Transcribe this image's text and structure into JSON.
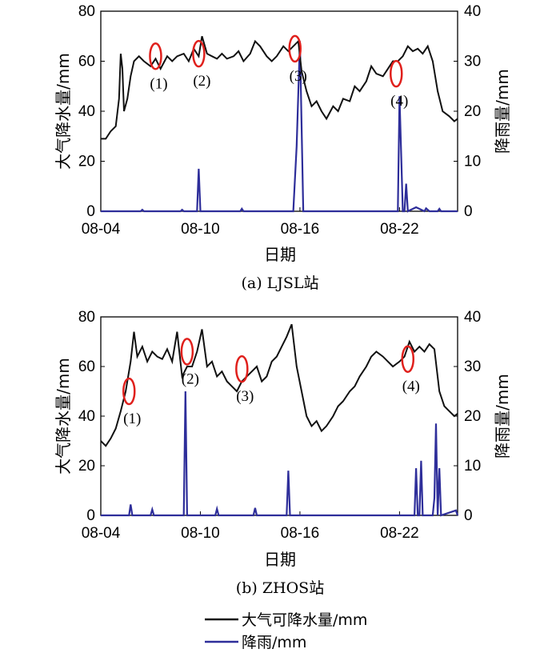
{
  "colors": {
    "pwv": "#111111",
    "rain": "#2e2e9a",
    "marker": "#e0201c"
  },
  "legend": {
    "pwv_label": "大气可降水量/mm",
    "rain_label": "降雨/mm"
  },
  "chart_data": [
    {
      "type": "line",
      "caption": "(a) LJSL站",
      "xlabel": "日期",
      "ylabel": "大气降水量/mm",
      "y2label": "降雨量/mm",
      "xlim": [
        0,
        21.5
      ],
      "ylim": [
        0,
        80
      ],
      "y2lim": [
        0,
        40
      ],
      "yticks": [
        0,
        20,
        40,
        60,
        80
      ],
      "y2ticks": [
        0,
        10,
        20,
        30,
        40
      ],
      "xticks": [
        {
          "x": 0,
          "label": "08-04"
        },
        {
          "x": 6,
          "label": "08-10"
        },
        {
          "x": 12,
          "label": "08-16"
        },
        {
          "x": 18,
          "label": "08-22"
        }
      ],
      "series": [
        {
          "name": "大气可降水量/mm",
          "axis": "left",
          "x": [
            0,
            0.3,
            0.6,
            0.9,
            1.1,
            1.2,
            1.3,
            1.4,
            1.6,
            1.8,
            2.0,
            2.3,
            2.6,
            3.0,
            3.3,
            3.6,
            4.0,
            4.3,
            4.6,
            5.0,
            5.3,
            5.6,
            5.9,
            6.1,
            6.4,
            6.7,
            7.0,
            7.3,
            7.6,
            8.0,
            8.3,
            8.6,
            9.0,
            9.3,
            9.6,
            10.0,
            10.3,
            10.6,
            11.0,
            11.3,
            11.6,
            11.9,
            12.1,
            12.4,
            12.7,
            13.0,
            13.3,
            13.6,
            14.0,
            14.3,
            14.6,
            15.0,
            15.3,
            15.6,
            16.0,
            16.3,
            16.6,
            17.0,
            17.3,
            17.6,
            17.9,
            18.2,
            18.5,
            18.8,
            19.1,
            19.4,
            19.7,
            20.0,
            20.3,
            20.6,
            21.0,
            21.3,
            21.5
          ],
          "values": [
            29,
            29,
            32,
            34,
            45,
            63,
            57,
            40,
            45,
            54,
            60,
            62,
            60,
            58,
            61,
            57,
            62,
            60,
            62,
            63,
            60,
            65,
            62,
            70,
            63,
            62,
            61,
            63,
            61,
            62,
            64,
            60,
            63,
            68,
            66,
            62,
            60,
            62,
            66,
            64,
            66,
            68,
            56,
            48,
            42,
            44,
            40,
            37,
            42,
            40,
            45,
            44,
            50,
            48,
            52,
            58,
            55,
            54,
            57,
            60,
            60,
            62,
            66,
            64,
            65,
            63,
            66,
            60,
            48,
            40,
            38,
            36,
            37
          ]
        },
        {
          "name": "降雨/mm",
          "axis": "right",
          "x": [
            0,
            2.4,
            2.5,
            2.6,
            3.0,
            3.5,
            3.6,
            4.8,
            4.9,
            5.0,
            5.8,
            5.9,
            6.0,
            6.1,
            6.2,
            8.4,
            8.5,
            8.6,
            11.6,
            11.8,
            12.0,
            12.2,
            12.4,
            17.8,
            17.9,
            18.0,
            18.2,
            18.3,
            18.4,
            18.5,
            19.0,
            19.5,
            19.6,
            19.8,
            20.3,
            20.4,
            20.5,
            21.5
          ],
          "values": [
            0,
            0,
            0.3,
            0,
            0,
            0,
            0,
            0,
            0.3,
            0,
            0,
            8.5,
            0,
            0,
            0,
            0,
            0.5,
            0,
            0,
            13,
            34,
            0,
            0,
            0,
            0,
            23,
            0,
            0,
            5.5,
            0,
            0.8,
            0,
            0.6,
            0,
            0,
            0.5,
            0,
            0
          ]
        }
      ],
      "annotations": [
        {
          "label": "(1)",
          "x": 3.3,
          "y": 62
        },
        {
          "label": "(2)",
          "x": 5.9,
          "y": 63
        },
        {
          "label": "(3)",
          "x": 11.7,
          "y": 65
        },
        {
          "label": "(4)",
          "x": 17.8,
          "y": 55
        }
      ]
    },
    {
      "type": "line",
      "caption": "(b) ZHOS站",
      "xlabel": "日期",
      "ylabel": "大气降水量/mm",
      "y2label": "降雨量/mm",
      "xlim": [
        0,
        21.5
      ],
      "ylim": [
        0,
        80
      ],
      "y2lim": [
        0,
        40
      ],
      "yticks": [
        0,
        20,
        40,
        60,
        80
      ],
      "y2ticks": [
        0,
        10,
        20,
        30,
        40
      ],
      "xticks": [
        {
          "x": 0,
          "label": "08-04"
        },
        {
          "x": 6,
          "label": "08-10"
        },
        {
          "x": 12,
          "label": "08-16"
        },
        {
          "x": 18,
          "label": "08-22"
        }
      ],
      "series": [
        {
          "name": "大气可降水量/mm",
          "axis": "left",
          "x": [
            0,
            0.3,
            0.6,
            0.9,
            1.2,
            1.5,
            1.8,
            2.0,
            2.2,
            2.5,
            2.8,
            3.1,
            3.4,
            3.7,
            4.0,
            4.3,
            4.6,
            4.9,
            5.2,
            5.5,
            5.8,
            6.1,
            6.4,
            6.7,
            7.0,
            7.3,
            7.6,
            7.9,
            8.2,
            8.5,
            8.8,
            9.1,
            9.4,
            9.7,
            10.0,
            10.3,
            10.6,
            10.9,
            11.2,
            11.5,
            11.8,
            12.1,
            12.4,
            12.7,
            13.0,
            13.3,
            13.6,
            14.0,
            14.3,
            14.6,
            15.0,
            15.3,
            15.6,
            16.0,
            16.3,
            16.6,
            17.0,
            17.3,
            17.6,
            18.0,
            18.3,
            18.6,
            18.9,
            19.2,
            19.5,
            19.8,
            20.1,
            20.4,
            20.7,
            21.0,
            21.3,
            21.5
          ],
          "values": [
            30,
            28,
            31,
            35,
            42,
            50,
            62,
            74,
            64,
            68,
            62,
            66,
            64,
            63,
            67,
            62,
            74,
            56,
            60,
            60,
            66,
            75,
            60,
            62,
            56,
            58,
            54,
            52,
            50,
            54,
            56,
            58,
            60,
            54,
            56,
            62,
            64,
            68,
            72,
            77,
            60,
            50,
            40,
            36,
            38,
            34,
            36,
            40,
            44,
            46,
            50,
            52,
            56,
            60,
            64,
            66,
            64,
            62,
            60,
            62,
            64,
            70,
            66,
            68,
            66,
            69,
            67,
            50,
            44,
            42,
            40,
            41
          ]
        },
        {
          "name": "降雨/mm",
          "axis": "right",
          "x": [
            0,
            1.7,
            1.8,
            1.9,
            3.0,
            3.1,
            3.2,
            4.9,
            5.0,
            5.1,
            5.2,
            6.9,
            7.0,
            7.1,
            9.2,
            9.3,
            9.4,
            11.2,
            11.3,
            11.4,
            18.9,
            19.0,
            19.1,
            19.2,
            19.3,
            19.4,
            19.5,
            19.6,
            20.0,
            20.1,
            20.2,
            20.3,
            20.4,
            20.5,
            21.4,
            21.5
          ],
          "values": [
            0,
            0,
            2.2,
            0,
            0,
            1.2,
            0,
            0,
            0,
            25,
            0,
            0,
            1.3,
            0,
            0,
            1.5,
            0,
            0,
            9,
            0,
            0,
            9.5,
            0,
            0,
            11,
            0,
            0,
            0,
            0,
            3.5,
            18.5,
            0,
            9.5,
            0,
            1,
            0
          ]
        }
      ],
      "annotations": [
        {
          "label": "(1)",
          "x": 1.7,
          "y": 50
        },
        {
          "label": "(2)",
          "x": 5.2,
          "y": 66
        },
        {
          "label": "(3)",
          "x": 8.5,
          "y": 59
        },
        {
          "label": "(4)",
          "x": 18.5,
          "y": 63
        }
      ]
    }
  ]
}
